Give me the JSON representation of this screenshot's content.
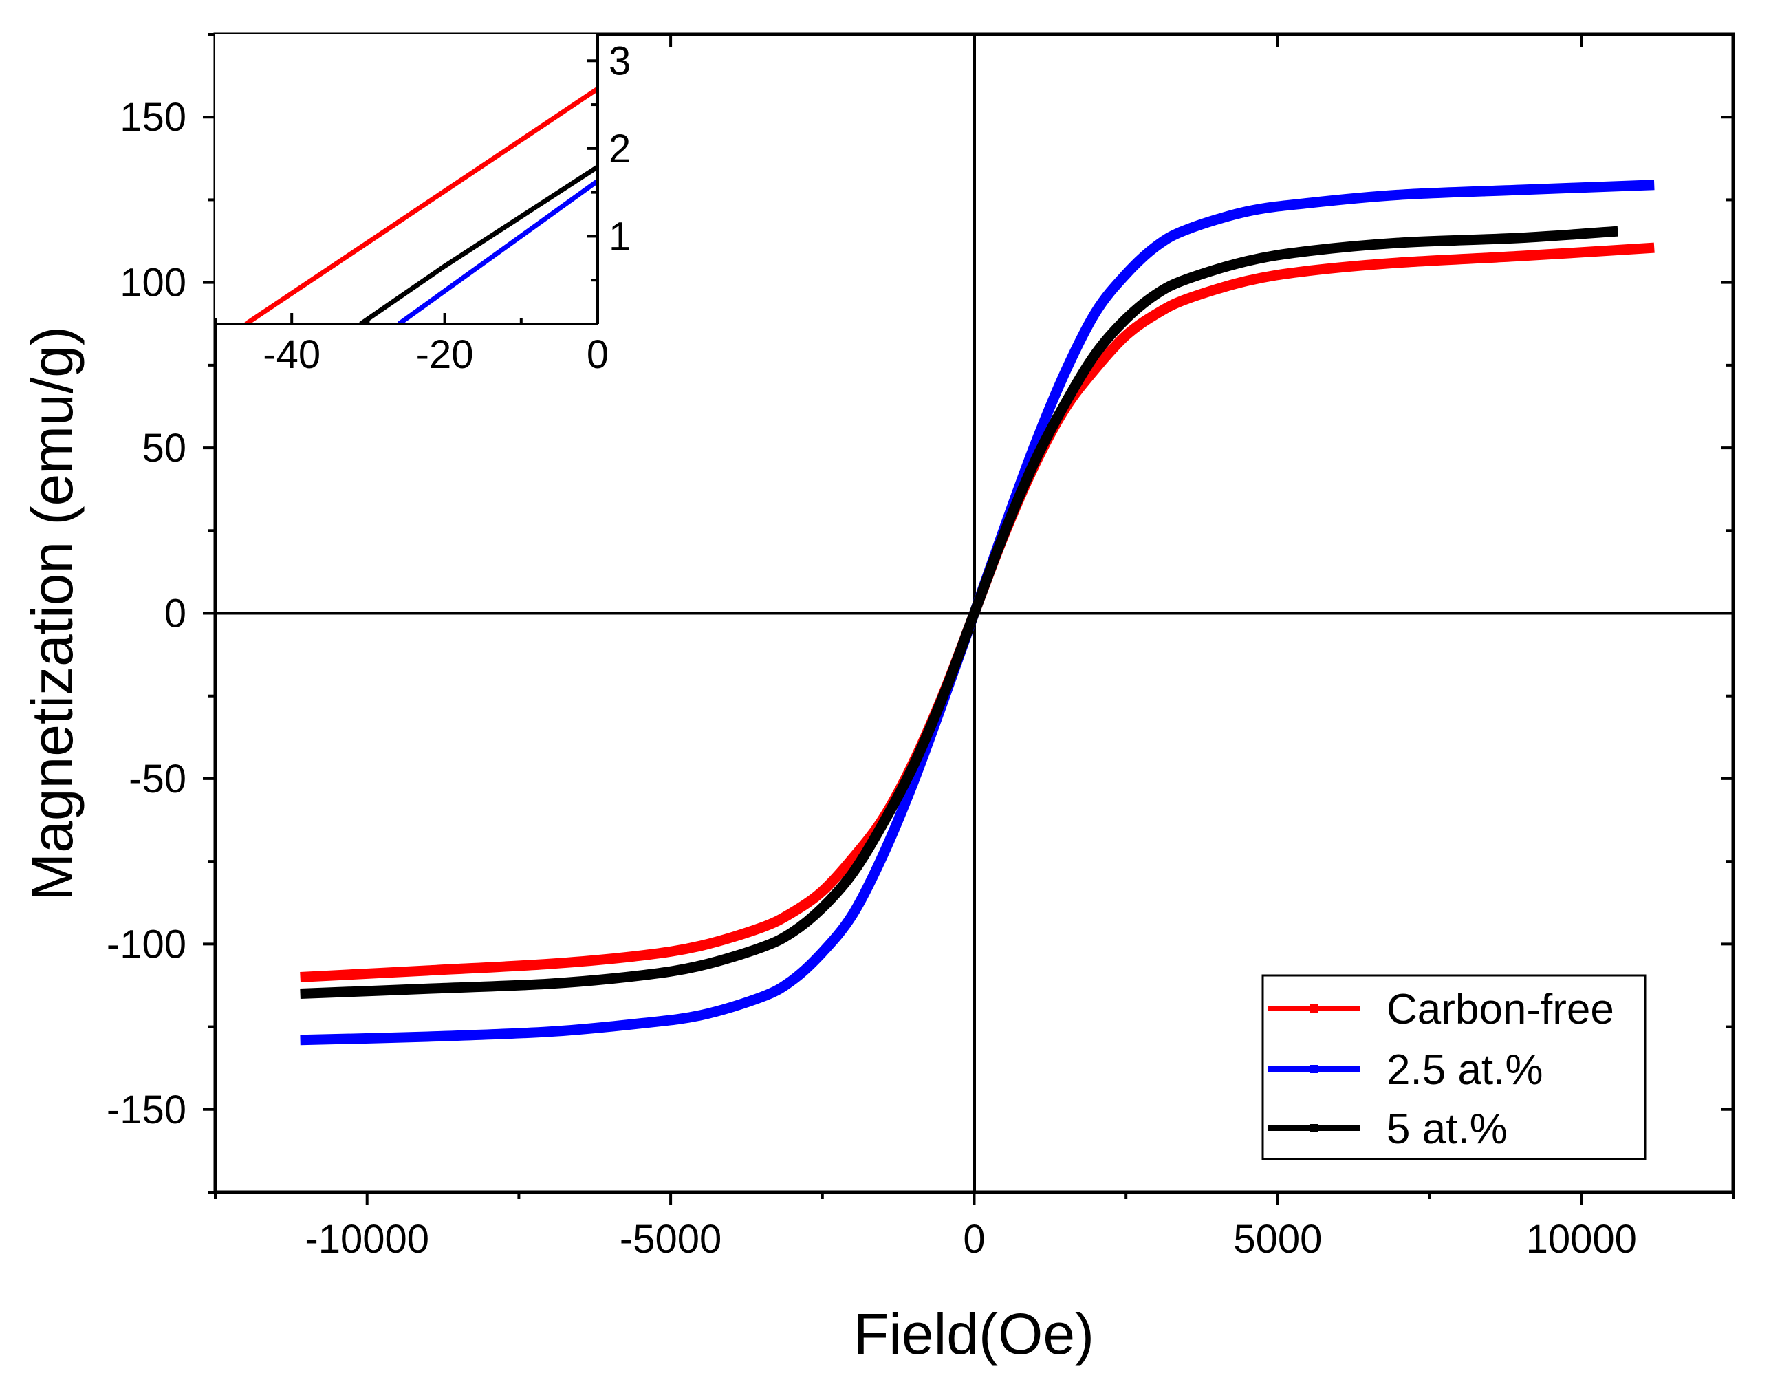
{
  "chart_data": {
    "type": "line",
    "title": "",
    "xlabel": "Field(Oe)",
    "ylabel": "Magnetization (emu/g)",
    "xlim": [
      -12500,
      12500
    ],
    "ylim": [
      -175,
      175
    ],
    "xticks": [
      -10000,
      -5000,
      0,
      5000,
      10000
    ],
    "xtick_labels": [
      "-10000",
      "-5000",
      "0",
      "5000",
      "10000"
    ],
    "yticks": [
      -150,
      -100,
      -50,
      0,
      50,
      100,
      150
    ],
    "ytick_labels": [
      "-150",
      "-100",
      "-50",
      "0",
      "50",
      "100",
      "150"
    ],
    "grid": false,
    "legend_position": "bottom-right",
    "series": [
      {
        "name": "Carbon-free",
        "color": "#ff0000",
        "x": [
          -11100,
          -9000,
          -7000,
          -5500,
          -4500,
          -3500,
          -3000,
          -2500,
          -2000,
          -1500,
          -1000,
          -500,
          0,
          500,
          1000,
          1500,
          2000,
          2500,
          3000,
          3500,
          4500,
          5500,
          7000,
          9000,
          11200
        ],
        "y": [
          -110,
          -108,
          -106,
          -103.5,
          -100.5,
          -95,
          -90.5,
          -84,
          -74,
          -62,
          -45,
          -24,
          0,
          24,
          45,
          62,
          74,
          84,
          90.5,
          95,
          100.5,
          103.5,
          106,
          108,
          110.5
        ]
      },
      {
        "name": "2.5 at.%",
        "color": "#0000ff",
        "x": [
          -11100,
          -9000,
          -7000,
          -5500,
          -4500,
          -3500,
          -3000,
          -2500,
          -2000,
          -1500,
          -1000,
          -500,
          0,
          500,
          1000,
          1500,
          2000,
          2500,
          3000,
          3500,
          4500,
          5500,
          7000,
          9000,
          11200
        ],
        "y": [
          -129,
          -128,
          -126.5,
          -124,
          -121.5,
          -116,
          -111,
          -102.5,
          -91,
          -73,
          -51,
          -26,
          0,
          26,
          51,
          73,
          91,
          102.5,
          111,
          116,
          121.5,
          124,
          126.5,
          128,
          129.5
        ]
      },
      {
        "name": "5 at.%",
        "color": "#000000",
        "x": [
          -11100,
          -9000,
          -7000,
          -5500,
          -4500,
          -3500,
          -3000,
          -2500,
          -2000,
          -1500,
          -1000,
          -500,
          0,
          500,
          1000,
          1500,
          2000,
          2500,
          3000,
          3500,
          4500,
          5500,
          7000,
          9000,
          10600
        ],
        "y": [
          -115,
          -113.5,
          -112,
          -109.5,
          -106.5,
          -101,
          -96.5,
          -89,
          -78.5,
          -63.5,
          -46,
          -24.5,
          0,
          24.5,
          46,
          63.5,
          78.5,
          89,
          96.5,
          101,
          106.5,
          109.5,
          112,
          113.5,
          115.5
        ]
      }
    ],
    "inset": {
      "xlim": [
        -50,
        0
      ],
      "ylim": [
        0,
        3.3
      ],
      "xticks": [
        -40,
        -20,
        0
      ],
      "xtick_labels": [
        "-40",
        "-20",
        "0"
      ],
      "yticks": [
        1,
        2,
        3
      ],
      "ytick_labels": [
        "1",
        "2",
        "3"
      ],
      "series": [
        {
          "name": "Carbon-free",
          "color": "#ff0000",
          "x": [
            -46,
            0
          ],
          "y": [
            0,
            2.68
          ]
        },
        {
          "name": "2.5 at.%",
          "color": "#0000ff",
          "x": [
            -26,
            0
          ],
          "y": [
            0,
            1.63
          ]
        },
        {
          "name": "5 at.%",
          "color": "#000000",
          "x": [
            -31,
            -20,
            0
          ],
          "y": [
            0,
            0.66,
            1.79
          ]
        }
      ]
    }
  }
}
